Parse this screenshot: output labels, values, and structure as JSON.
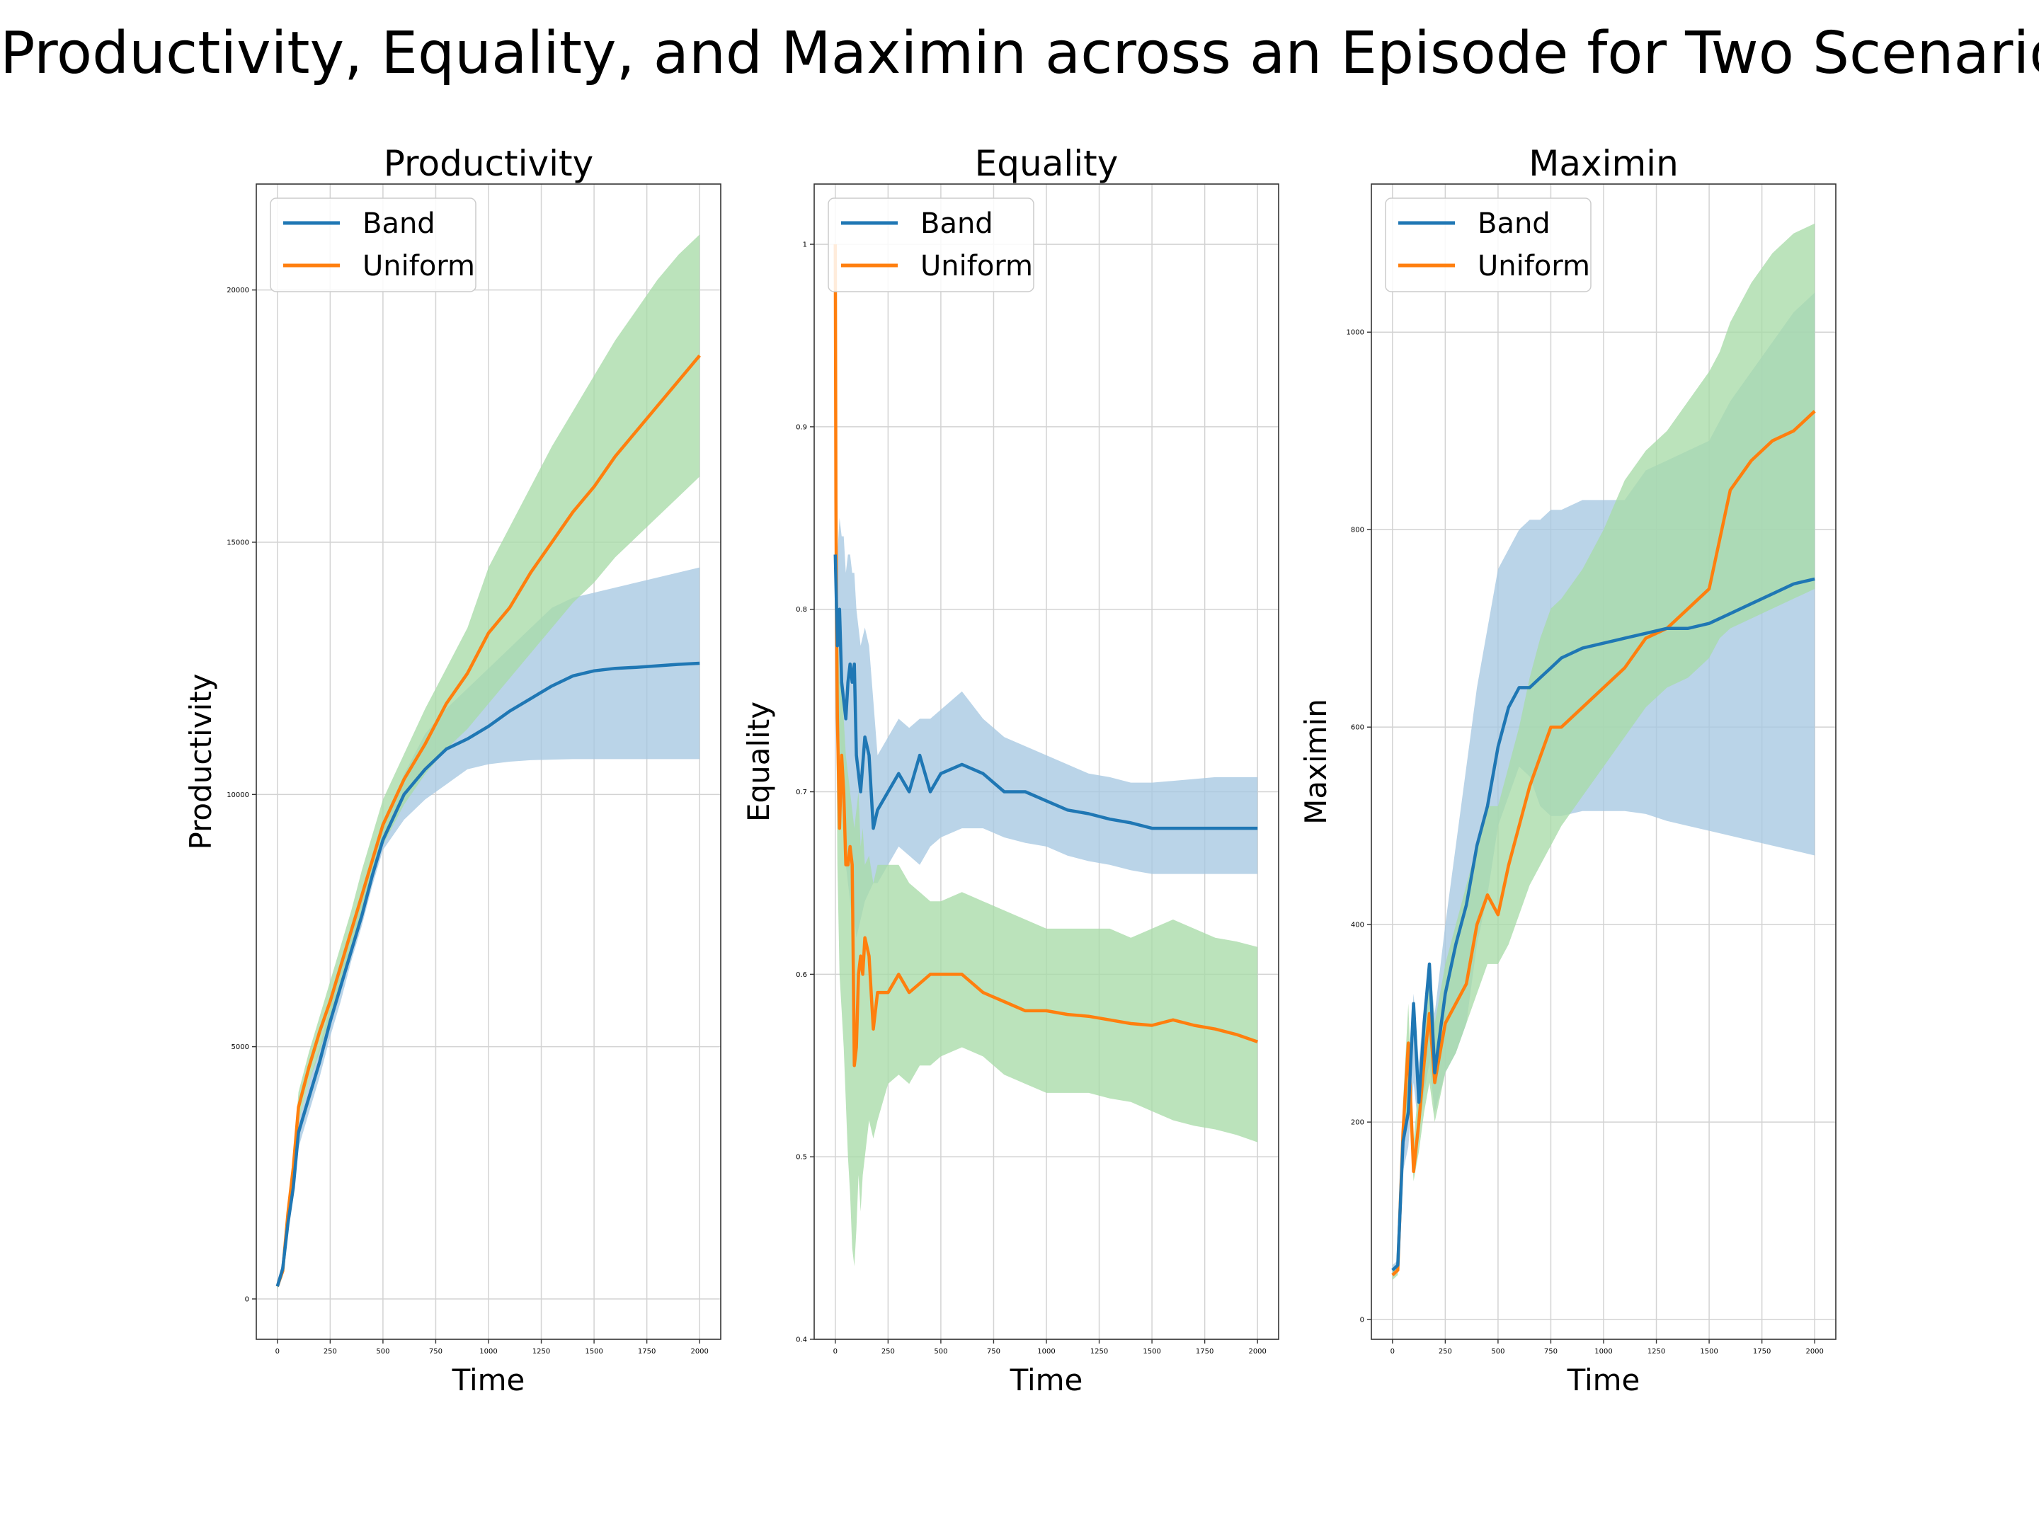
{
  "figure": {
    "title": "Productivity, Equality, and Maximin across an Episode for Two Scenarios"
  },
  "colors": {
    "band": "#1f77b4",
    "uniform": "#ff7f0e",
    "band_fill": "#a6c8e2",
    "uniform_fill": "#a8dba8",
    "overlap_fill": "#6aaea9",
    "grid": "#d3d3d3",
    "axes": "#333333"
  },
  "legend": {
    "entries": [
      "Band",
      "Uniform"
    ],
    "placement": "top-left"
  },
  "chart_data": [
    {
      "type": "line",
      "title": "Productivity",
      "xlabel": "Time",
      "ylabel": "Productivity",
      "xlim": [
        -100,
        2100
      ],
      "ylim": [
        -800,
        22100
      ],
      "xticks": [
        0,
        250,
        500,
        750,
        1000,
        1250,
        1500,
        1750,
        2000
      ],
      "yticks": [
        0,
        5000,
        10000,
        15000,
        20000
      ],
      "grid": true,
      "legend": "top-left",
      "series": [
        {
          "name": "Band",
          "x": [
            0,
            25,
            50,
            75,
            100,
            150,
            200,
            250,
            300,
            350,
            400,
            450,
            500,
            600,
            700,
            800,
            900,
            1000,
            1100,
            1200,
            1300,
            1400,
            1500,
            1600,
            1700,
            1800,
            1900,
            2000
          ],
          "y": [
            250,
            600,
            1500,
            2200,
            3300,
            4000,
            4700,
            5500,
            6200,
            6900,
            7600,
            8400,
            9100,
            10000,
            10500,
            10900,
            11100,
            11350,
            11650,
            11900,
            12150,
            12350,
            12450,
            12500,
            12520,
            12550,
            12580,
            12600
          ],
          "lower": [
            200,
            450,
            1350,
            2000,
            3000,
            3700,
            4400,
            5200,
            5900,
            6700,
            7400,
            8200,
            8900,
            9500,
            9900,
            10200,
            10500,
            10600,
            10650,
            10680,
            10690,
            10700,
            10700,
            10700,
            10700,
            10700,
            10700,
            10700
          ],
          "upper": [
            320,
            750,
            1700,
            2400,
            3500,
            4300,
            5000,
            5800,
            6500,
            7200,
            7900,
            8700,
            9400,
            10400,
            11200,
            11700,
            12100,
            12500,
            12900,
            13300,
            13700,
            13900,
            14000,
            14100,
            14200,
            14300,
            14400,
            14500
          ]
        },
        {
          "name": "Uniform",
          "x": [
            0,
            25,
            50,
            75,
            100,
            150,
            200,
            250,
            300,
            350,
            400,
            450,
            500,
            600,
            700,
            800,
            900,
            1000,
            1100,
            1200,
            1300,
            1400,
            1500,
            1600,
            1700,
            1800,
            1900,
            2000
          ],
          "y": [
            250,
            550,
            1700,
            2600,
            3800,
            4600,
            5300,
            5900,
            6600,
            7300,
            8000,
            8700,
            9400,
            10300,
            11000,
            11800,
            12400,
            13200,
            13700,
            14400,
            15000,
            15600,
            16100,
            16700,
            17200,
            17700,
            18200,
            18700
          ],
          "lower": [
            200,
            450,
            1500,
            2400,
            3500,
            4300,
            4900,
            5600,
            6300,
            7000,
            7700,
            8400,
            9000,
            9800,
            10400,
            10900,
            11300,
            11800,
            12300,
            12800,
            13300,
            13800,
            14200,
            14700,
            15100,
            15500,
            15900,
            16300
          ],
          "upper": [
            320,
            700,
            1900,
            2800,
            4100,
            4900,
            5600,
            6300,
            7000,
            7700,
            8500,
            9200,
            9900,
            10800,
            11700,
            12500,
            13300,
            14500,
            15300,
            16100,
            16900,
            17600,
            18300,
            19000,
            19600,
            20200,
            20700,
            21100
          ]
        }
      ]
    },
    {
      "type": "line",
      "title": "Equality",
      "xlabel": "Time",
      "ylabel": "Equality",
      "xlim": [
        -100,
        2100
      ],
      "ylim": [
        0.4,
        1.033
      ],
      "xticks": [
        0,
        250,
        500,
        750,
        1000,
        1250,
        1500,
        1750,
        2000
      ],
      "yticks": [
        0.4,
        0.5,
        0.6,
        0.7,
        0.8,
        0.9,
        1.0
      ],
      "grid": true,
      "legend": "top-left",
      "series": [
        {
          "name": "Band",
          "x": [
            0,
            10,
            20,
            30,
            40,
            50,
            60,
            70,
            80,
            90,
            100,
            120,
            140,
            160,
            180,
            200,
            250,
            300,
            350,
            400,
            450,
            500,
            600,
            700,
            800,
            900,
            1000,
            1100,
            1200,
            1300,
            1400,
            1500,
            1600,
            1700,
            1800,
            1900,
            2000
          ],
          "y": [
            0.83,
            0.78,
            0.8,
            0.76,
            0.75,
            0.74,
            0.76,
            0.77,
            0.76,
            0.77,
            0.72,
            0.7,
            0.73,
            0.72,
            0.68,
            0.69,
            0.7,
            0.71,
            0.7,
            0.72,
            0.7,
            0.71,
            0.715,
            0.71,
            0.7,
            0.7,
            0.695,
            0.69,
            0.688,
            0.685,
            0.683,
            0.68,
            0.68,
            0.68,
            0.68,
            0.68,
            0.68
          ],
          "lower": [
            0.8,
            0.74,
            0.73,
            0.7,
            0.68,
            0.66,
            0.65,
            0.64,
            0.63,
            0.63,
            0.62,
            0.63,
            0.64,
            0.645,
            0.65,
            0.65,
            0.66,
            0.67,
            0.665,
            0.66,
            0.67,
            0.675,
            0.68,
            0.68,
            0.675,
            0.672,
            0.67,
            0.665,
            0.662,
            0.66,
            0.657,
            0.655,
            0.655,
            0.655,
            0.655,
            0.655,
            0.655
          ],
          "upper": [
            0.86,
            0.83,
            0.85,
            0.84,
            0.84,
            0.82,
            0.83,
            0.83,
            0.82,
            0.82,
            0.8,
            0.78,
            0.79,
            0.78,
            0.75,
            0.72,
            0.73,
            0.74,
            0.735,
            0.74,
            0.74,
            0.745,
            0.755,
            0.74,
            0.73,
            0.725,
            0.72,
            0.715,
            0.71,
            0.708,
            0.705,
            0.705,
            0.706,
            0.707,
            0.708,
            0.708,
            0.708
          ]
        },
        {
          "name": "Uniform",
          "x": [
            0,
            3,
            6,
            10,
            20,
            30,
            40,
            50,
            60,
            70,
            80,
            90,
            100,
            110,
            120,
            130,
            140,
            160,
            180,
            200,
            250,
            300,
            350,
            400,
            450,
            500,
            600,
            700,
            800,
            900,
            1000,
            1100,
            1200,
            1300,
            1400,
            1500,
            1600,
            1700,
            1800,
            1900,
            2000
          ],
          "y": [
            1.0,
            0.86,
            0.79,
            0.74,
            0.68,
            0.72,
            0.7,
            0.66,
            0.66,
            0.67,
            0.66,
            0.55,
            0.56,
            0.6,
            0.61,
            0.6,
            0.62,
            0.61,
            0.57,
            0.59,
            0.59,
            0.6,
            0.59,
            0.595,
            0.6,
            0.6,
            0.6,
            0.59,
            0.585,
            0.58,
            0.58,
            0.578,
            0.577,
            0.575,
            0.573,
            0.572,
            0.575,
            0.572,
            0.57,
            0.567,
            0.563
          ],
          "lower": [
            0.95,
            0.8,
            0.72,
            0.66,
            0.6,
            0.58,
            0.56,
            0.53,
            0.5,
            0.48,
            0.45,
            0.44,
            0.46,
            0.49,
            0.47,
            0.49,
            0.5,
            0.52,
            0.51,
            0.52,
            0.54,
            0.545,
            0.54,
            0.55,
            0.55,
            0.555,
            0.56,
            0.555,
            0.545,
            0.54,
            0.535,
            0.535,
            0.535,
            0.532,
            0.53,
            0.525,
            0.52,
            0.517,
            0.515,
            0.512,
            0.508
          ],
          "upper": [
            1.0,
            0.9,
            0.85,
            0.8,
            0.76,
            0.76,
            0.74,
            0.72,
            0.71,
            0.7,
            0.69,
            0.68,
            0.69,
            0.7,
            0.67,
            0.68,
            0.66,
            0.665,
            0.65,
            0.66,
            0.66,
            0.66,
            0.65,
            0.645,
            0.64,
            0.64,
            0.645,
            0.64,
            0.635,
            0.63,
            0.625,
            0.625,
            0.625,
            0.625,
            0.62,
            0.625,
            0.63,
            0.625,
            0.62,
            0.618,
            0.615
          ]
        }
      ]
    },
    {
      "type": "line",
      "title": "Maximin",
      "xlabel": "Time",
      "ylabel": "Maximin",
      "xlim": [
        -100,
        2100
      ],
      "ylim": [
        -20,
        1150
      ],
      "xticks": [
        0,
        250,
        500,
        750,
        1000,
        1250,
        1500,
        1750,
        2000
      ],
      "yticks": [
        0,
        200,
        400,
        600,
        800,
        1000
      ],
      "grid": true,
      "legend": "top-left",
      "series": [
        {
          "name": "Band",
          "x": [
            0,
            25,
            50,
            75,
            100,
            125,
            150,
            175,
            200,
            250,
            300,
            350,
            400,
            450,
            500,
            550,
            600,
            650,
            700,
            750,
            800,
            900,
            1000,
            1100,
            1200,
            1300,
            1400,
            1500,
            1600,
            1700,
            1800,
            1900,
            2000
          ],
          "y": [
            50,
            55,
            180,
            210,
            320,
            220,
            300,
            360,
            250,
            330,
            380,
            420,
            480,
            520,
            580,
            620,
            640,
            640,
            650,
            660,
            670,
            680,
            685,
            690,
            695,
            700,
            700,
            705,
            715,
            725,
            735,
            745,
            750
          ],
          "lower": [
            45,
            50,
            150,
            175,
            240,
            190,
            230,
            260,
            210,
            250,
            270,
            300,
            380,
            430,
            500,
            530,
            560,
            550,
            520,
            510,
            510,
            515,
            515,
            515,
            512,
            505,
            500,
            495,
            490,
            485,
            480,
            475,
            470
          ],
          "upper": [
            55,
            60,
            210,
            245,
            330,
            260,
            320,
            360,
            310,
            400,
            480,
            560,
            640,
            700,
            760,
            780,
            800,
            810,
            810,
            820,
            820,
            830,
            830,
            830,
            860,
            870,
            880,
            890,
            930,
            960,
            990,
            1020,
            1040
          ]
        },
        {
          "name": "Uniform",
          "x": [
            0,
            25,
            50,
            75,
            100,
            125,
            150,
            175,
            200,
            250,
            300,
            350,
            400,
            450,
            500,
            550,
            600,
            650,
            700,
            750,
            800,
            900,
            1000,
            1100,
            1200,
            1300,
            1400,
            1500,
            1550,
            1600,
            1700,
            1800,
            1900,
            2000
          ],
          "y": [
            45,
            50,
            190,
            280,
            150,
            200,
            260,
            310,
            240,
            300,
            320,
            340,
            400,
            430,
            410,
            460,
            500,
            540,
            570,
            600,
            600,
            620,
            640,
            660,
            690,
            700,
            720,
            740,
            790,
            840,
            870,
            890,
            900,
            920
          ],
          "lower": [
            40,
            45,
            160,
            230,
            140,
            170,
            210,
            240,
            200,
            250,
            270,
            300,
            330,
            360,
            360,
            380,
            410,
            440,
            460,
            480,
            500,
            530,
            560,
            590,
            620,
            640,
            650,
            670,
            690,
            700,
            710,
            720,
            730,
            740
          ],
          "upper": [
            50,
            55,
            220,
            320,
            180,
            240,
            300,
            360,
            300,
            360,
            400,
            440,
            480,
            520,
            520,
            560,
            600,
            650,
            690,
            720,
            730,
            760,
            800,
            850,
            880,
            900,
            930,
            960,
            980,
            1010,
            1050,
            1080,
            1100,
            1110
          ]
        }
      ]
    }
  ]
}
